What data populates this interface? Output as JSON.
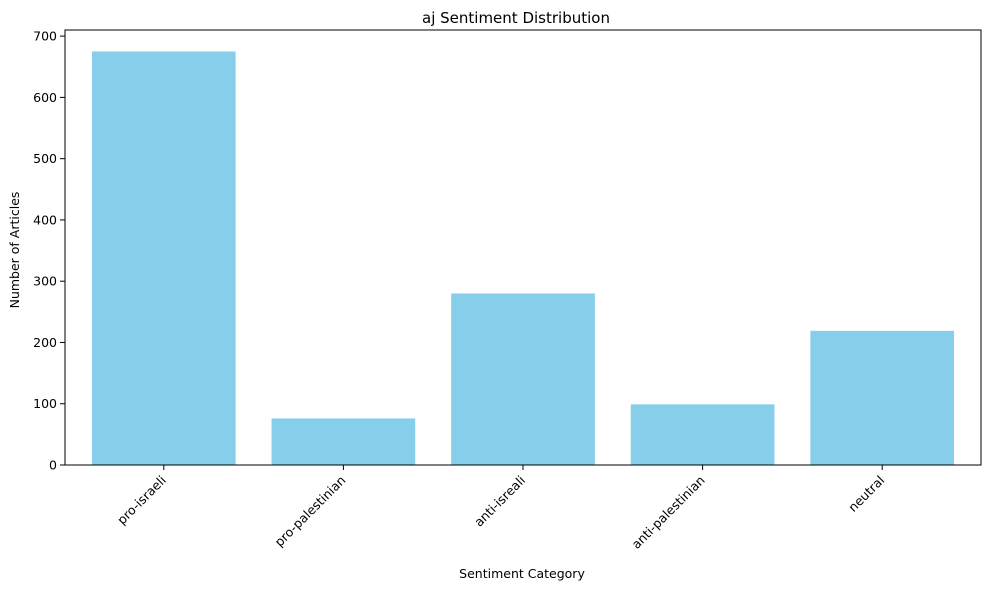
{
  "chart_data": {
    "type": "bar",
    "title": "aj Sentiment Distribution",
    "xlabel": "Sentiment Category",
    "ylabel": "Number of Articles",
    "categories": [
      "pro-israeli",
      "pro-palestinian",
      "anti-isreali",
      "anti-palestinian",
      "neutral"
    ],
    "values": [
      675,
      76,
      280,
      99,
      219
    ],
    "ylim": [
      0,
      710
    ],
    "yticks": [
      0,
      100,
      200,
      300,
      400,
      500,
      600,
      700
    ],
    "bar_color": "#87CEEB",
    "grid": false,
    "legend": "none",
    "x_tick_rotation": "45 degrees, right-aligned"
  }
}
